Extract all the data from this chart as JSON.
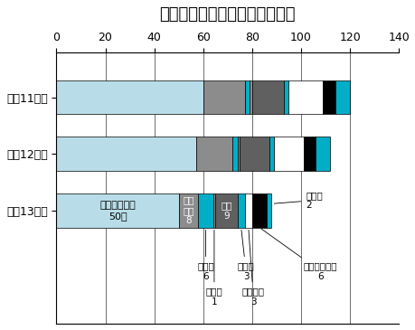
{
  "title": "騒音苦情の発生源別の申立状況",
  "years": [
    "平成13年度",
    "平成12年度",
    "平成11年度"
  ],
  "categories": [
    "工事・事業場",
    "建設作業",
    "自動車",
    "航空機",
    "営業",
    "拡声機",
    "家庭生活",
    "アイドリング",
    "その他"
  ],
  "colors": [
    "#b8dde8",
    "#8c8c8c",
    "#00aec8",
    "#8c8c8c",
    "#606060",
    "#00aec8",
    "#ffffff",
    "#000000",
    "#00aec8"
  ],
  "data": {
    "平成11年度": [
      60,
      17,
      2,
      1,
      13,
      2,
      14,
      5,
      6
    ],
    "平成12年度": [
      57,
      15,
      2,
      1,
      12,
      2,
      12,
      5,
      6
    ],
    "平成13年度": [
      50,
      8,
      6,
      1,
      9,
      3,
      3,
      6,
      2
    ]
  },
  "xlim": [
    0,
    140
  ],
  "xticks": [
    0,
    20,
    40,
    60,
    80,
    100,
    120,
    140
  ],
  "bar_height": 0.6,
  "title_fontsize": 13,
  "axis_fontsize": 9,
  "label_fontsize": 8,
  "small_label_fontsize": 7.5
}
